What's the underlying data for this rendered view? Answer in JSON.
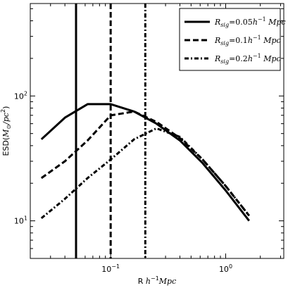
{
  "chart_data": {
    "type": "line",
    "xscale": "log",
    "yscale": "log",
    "xlim": [
      0.02,
      3.2
    ],
    "ylim": [
      5,
      550
    ],
    "grid": false,
    "legend_position": "top-right",
    "xlabel": "R h⁻¹ Mpc",
    "ylabel": "ESD(M⊙/pc²)",
    "x_ticks": [
      {
        "value": 0.1,
        "base": "10",
        "exp": "−1"
      },
      {
        "value": 1,
        "base": "10",
        "exp": "0"
      }
    ],
    "y_ticks": [
      {
        "value": 10,
        "base": "10",
        "exp": "1"
      },
      {
        "value": 100,
        "base": "10",
        "exp": "2"
      }
    ],
    "series": [
      {
        "name": "R_sig = 0.05h⁻¹ Mpc",
        "style": "solid",
        "marker_x": 0.05,
        "x": [
          0.025,
          0.04,
          0.063,
          0.1,
          0.16,
          0.25,
          0.4,
          0.63,
          1.0,
          1.6
        ],
        "y": [
          45,
          67,
          86,
          86,
          75,
          60,
          44,
          29,
          17.5,
          10
        ]
      },
      {
        "name": "R_sig = 0.1h⁻¹ Mpc",
        "style": "dashed",
        "marker_x": 0.1,
        "x": [
          0.025,
          0.04,
          0.063,
          0.1,
          0.16,
          0.25,
          0.4,
          0.63,
          1.0,
          1.6
        ],
        "y": [
          22,
          30,
          44,
          70,
          75,
          62,
          46,
          31,
          19,
          11
        ]
      },
      {
        "name": "R_sig = 0.2h⁻¹ Mpc",
        "style": "dashdot",
        "marker_x": 0.2,
        "x": [
          0.025,
          0.04,
          0.063,
          0.1,
          0.16,
          0.25,
          0.4,
          0.63,
          1.0,
          1.6
        ],
        "y": [
          10.5,
          15,
          22,
          31,
          45,
          55,
          47,
          31,
          19,
          11
        ]
      }
    ],
    "legend": [
      {
        "sym": "R",
        "sub": "sig",
        "eq": "=0.05",
        "unit": "h",
        "exp": "−1",
        "tail": " Mpc"
      },
      {
        "sym": "R",
        "sub": "sig",
        "eq": "=0.1",
        "unit": "h",
        "exp": "−1",
        "tail": " Mpc"
      },
      {
        "sym": "R",
        "sub": "sig",
        "eq": "=0.2",
        "unit": "h",
        "exp": "−1",
        "tail": " Mpc"
      }
    ],
    "xlabel_parts": {
      "prefix": "R ",
      "unit": "h",
      "exp": "−1",
      "tail": "Mpc"
    },
    "ylabel_parts": {
      "prefix": "ESD(",
      "sym": "M",
      "sub": "⊙",
      "mid": "/pc",
      "exp": "2",
      "tail": ")"
    }
  }
}
